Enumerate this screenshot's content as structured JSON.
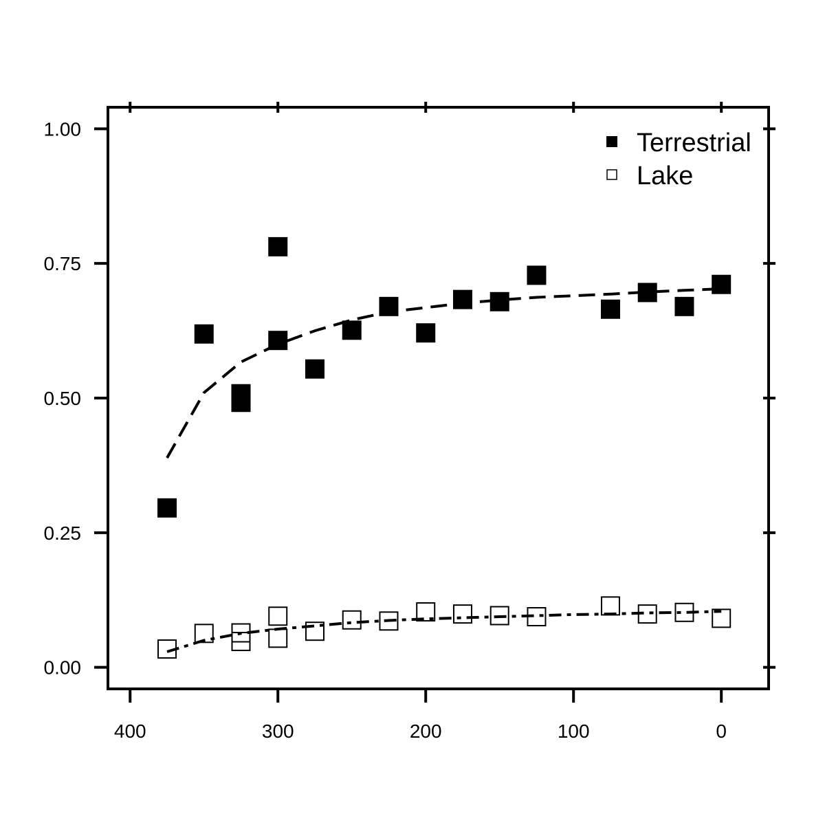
{
  "chart_data": {
    "type": "scatter",
    "title": "",
    "xlabel": "",
    "ylabel": "",
    "xlim": [
      415,
      -32
    ],
    "ylim": [
      -0.04,
      1.04
    ],
    "x_reversed": true,
    "x_ticks": [
      400,
      300,
      200,
      100,
      0
    ],
    "x_tick_labels": [
      "400",
      "300",
      "200",
      "100",
      "0"
    ],
    "y_ticks": [
      0,
      0.25,
      0.5,
      0.75,
      1.0
    ],
    "y_tick_labels": [
      "0.00",
      "0.25",
      "0.50",
      "0.75",
      "1.00"
    ],
    "grid": false,
    "legend_position": "top-right",
    "series": [
      {
        "name": "Terrestrial",
        "marker": "filled-square",
        "color": "#000000",
        "points": [
          {
            "x": 375,
            "y": 0.296
          },
          {
            "x": 350,
            "y": 0.619
          },
          {
            "x": 325,
            "y": 0.508
          },
          {
            "x": 325,
            "y": 0.492
          },
          {
            "x": 300,
            "y": 0.781
          },
          {
            "x": 300,
            "y": 0.607
          },
          {
            "x": 275,
            "y": 0.554
          },
          {
            "x": 250,
            "y": 0.626
          },
          {
            "x": 225,
            "y": 0.67
          },
          {
            "x": 200,
            "y": 0.621
          },
          {
            "x": 175,
            "y": 0.683
          },
          {
            "x": 150,
            "y": 0.679
          },
          {
            "x": 125,
            "y": 0.728
          },
          {
            "x": 75,
            "y": 0.665
          },
          {
            "x": 50,
            "y": 0.696
          },
          {
            "x": 25,
            "y": 0.67
          },
          {
            "x": 0,
            "y": 0.711
          }
        ],
        "trend": [
          {
            "x": 375,
            "y": 0.389
          },
          {
            "x": 350,
            "y": 0.51
          },
          {
            "x": 325,
            "y": 0.567
          },
          {
            "x": 300,
            "y": 0.6
          },
          {
            "x": 275,
            "y": 0.625
          },
          {
            "x": 250,
            "y": 0.645
          },
          {
            "x": 225,
            "y": 0.66
          },
          {
            "x": 200,
            "y": 0.668
          },
          {
            "x": 175,
            "y": 0.676
          },
          {
            "x": 150,
            "y": 0.682
          },
          {
            "x": 125,
            "y": 0.687
          },
          {
            "x": 100,
            "y": 0.69
          },
          {
            "x": 75,
            "y": 0.693
          },
          {
            "x": 50,
            "y": 0.697
          },
          {
            "x": 25,
            "y": 0.7
          },
          {
            "x": 0,
            "y": 0.703
          }
        ]
      },
      {
        "name": "Lake",
        "marker": "open-square",
        "color": "#000000",
        "points": [
          {
            "x": 375,
            "y": 0.034
          },
          {
            "x": 350,
            "y": 0.063
          },
          {
            "x": 325,
            "y": 0.064
          },
          {
            "x": 325,
            "y": 0.048
          },
          {
            "x": 300,
            "y": 0.095
          },
          {
            "x": 300,
            "y": 0.054
          },
          {
            "x": 275,
            "y": 0.067
          },
          {
            "x": 250,
            "y": 0.088
          },
          {
            "x": 225,
            "y": 0.086
          },
          {
            "x": 200,
            "y": 0.103
          },
          {
            "x": 175,
            "y": 0.099
          },
          {
            "x": 150,
            "y": 0.096
          },
          {
            "x": 125,
            "y": 0.094
          },
          {
            "x": 75,
            "y": 0.114
          },
          {
            "x": 50,
            "y": 0.099
          },
          {
            "x": 25,
            "y": 0.102
          },
          {
            "x": 0,
            "y": 0.091
          }
        ],
        "trend": [
          {
            "x": 375,
            "y": 0.029
          },
          {
            "x": 350,
            "y": 0.05
          },
          {
            "x": 325,
            "y": 0.063
          },
          {
            "x": 300,
            "y": 0.071
          },
          {
            "x": 275,
            "y": 0.077
          },
          {
            "x": 250,
            "y": 0.083
          },
          {
            "x": 225,
            "y": 0.087
          },
          {
            "x": 200,
            "y": 0.09
          },
          {
            "x": 175,
            "y": 0.092
          },
          {
            "x": 150,
            "y": 0.094
          },
          {
            "x": 125,
            "y": 0.096
          },
          {
            "x": 100,
            "y": 0.098
          },
          {
            "x": 75,
            "y": 0.099
          },
          {
            "x": 50,
            "y": 0.101
          },
          {
            "x": 25,
            "y": 0.102
          },
          {
            "x": 0,
            "y": 0.104
          }
        ]
      }
    ]
  }
}
